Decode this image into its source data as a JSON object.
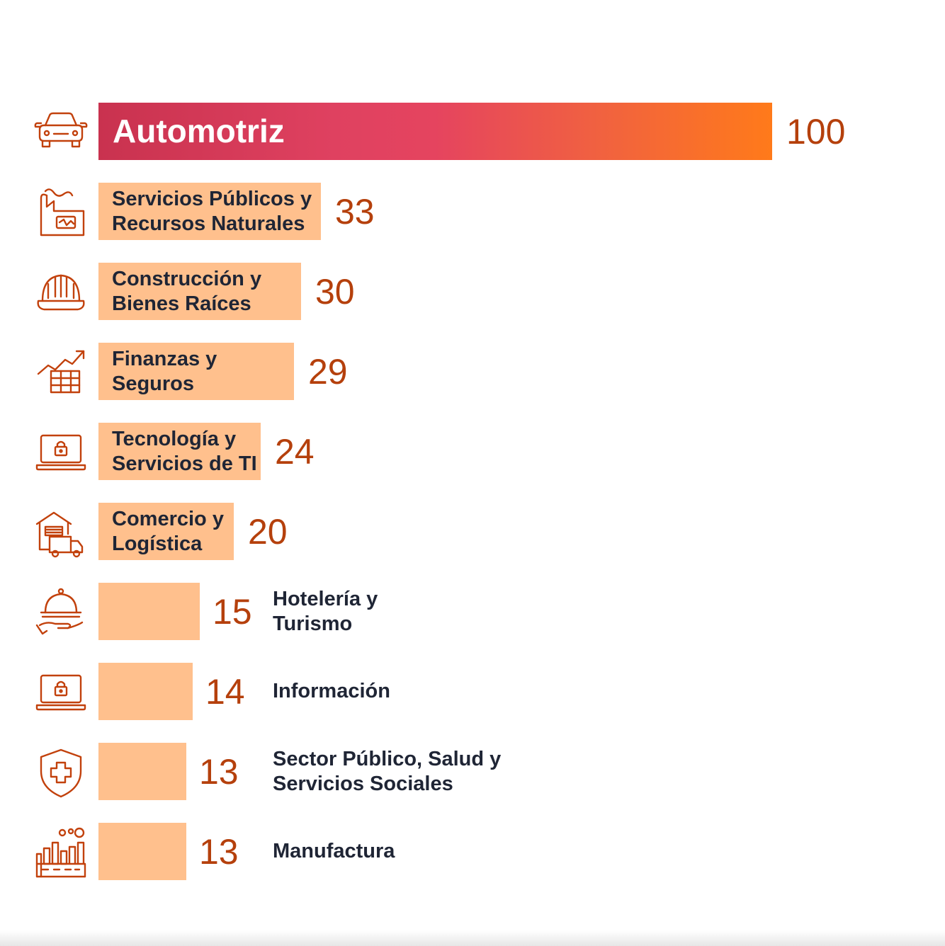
{
  "colors": {
    "bar": "#ffc08d",
    "top_bar_gradient": [
      "#c9324f",
      "#e5445f",
      "#ff7a1a"
    ],
    "value_text": "#b5400c",
    "label_text": "#1f2535",
    "icon_stroke": "#c2410c"
  },
  "chart_data": {
    "type": "bar",
    "orientation": "horizontal",
    "categories": [
      "Automotriz",
      "Servicios Públicos y\nRecursos Naturales",
      "Construcción y\nBienes Raíces",
      "Finanzas y\nSeguros",
      "Tecnología y\nServicios de TI",
      "Comercio y\nLogística",
      "Hotelería y\nTurismo",
      "Información",
      "Sector Público, Salud y\nServicios Sociales",
      "Manufactura"
    ],
    "values": [
      100,
      33,
      30,
      29,
      24,
      20,
      15,
      14,
      13,
      13
    ],
    "icons": [
      "car-icon",
      "factory-energy-icon",
      "hard-hat-icon",
      "finance-chart-icon",
      "laptop-lock-icon",
      "warehouse-truck-icon",
      "service-cloche-icon",
      "laptop-lock-icon",
      "shield-cross-icon",
      "manufacturing-plant-icon"
    ],
    "label_position": [
      "inside",
      "inside",
      "inside",
      "inside",
      "inside",
      "inside",
      "outside",
      "outside",
      "outside",
      "outside"
    ],
    "xlim": [
      0,
      100
    ],
    "grid": false
  }
}
